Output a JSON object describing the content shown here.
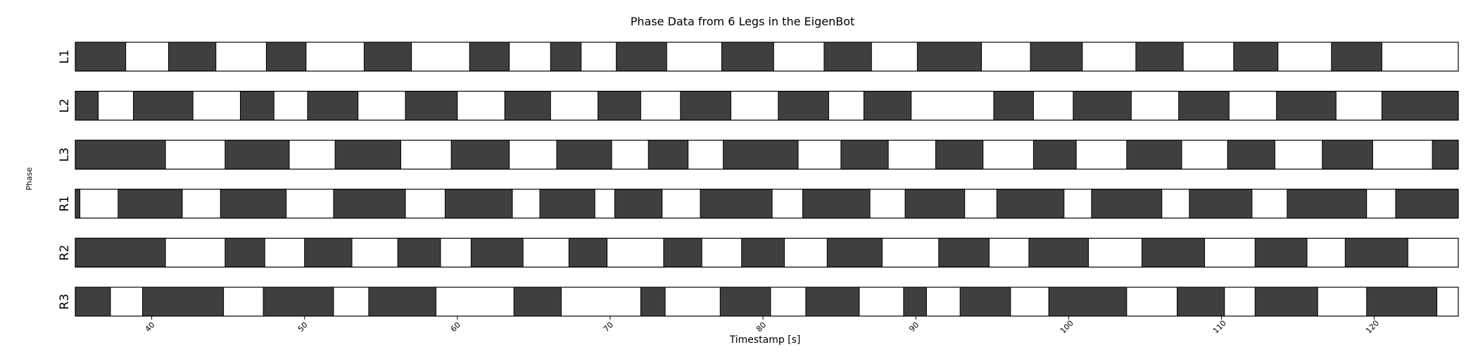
{
  "chart_data": {
    "type": "gantt-phase",
    "title": "Phase Data from 6 Legs in the EigenBot",
    "xlabel": "Timestamp [s]",
    "ylabel": "Phase",
    "xlim": [
      35,
      125.5
    ],
    "xticks": [
      40,
      50,
      60,
      70,
      80,
      90,
      100,
      110,
      120
    ],
    "grid": false,
    "colors": {
      "stance": "#3f3f3f",
      "swing": "#ffffff",
      "edge": "#000000"
    },
    "series": [
      {
        "name": "L1",
        "dark_segments": [
          [
            35.0,
            38.3
          ],
          [
            41.1,
            44.2
          ],
          [
            47.5,
            50.1
          ],
          [
            53.9,
            57.0
          ],
          [
            60.8,
            63.4
          ],
          [
            66.1,
            68.1
          ],
          [
            70.4,
            73.7
          ],
          [
            77.3,
            80.7
          ],
          [
            84.0,
            87.1
          ],
          [
            90.1,
            94.3
          ],
          [
            97.5,
            100.9
          ],
          [
            104.4,
            107.5
          ],
          [
            110.8,
            113.7
          ],
          [
            117.2,
            120.5
          ]
        ]
      },
      {
        "name": "L2",
        "dark_segments": [
          [
            35.0,
            36.5
          ],
          [
            38.8,
            42.7
          ],
          [
            45.8,
            48.0
          ],
          [
            50.2,
            53.5
          ],
          [
            56.6,
            60.0
          ],
          [
            63.1,
            66.1
          ],
          [
            69.2,
            72.0
          ],
          [
            74.6,
            77.9
          ],
          [
            81.0,
            84.3
          ],
          [
            86.6,
            89.7
          ],
          [
            95.1,
            97.7
          ],
          [
            100.3,
            104.1
          ],
          [
            107.2,
            110.5
          ],
          [
            113.6,
            117.5
          ],
          [
            120.5,
            125.5
          ]
        ]
      },
      {
        "name": "L3",
        "dark_segments": [
          [
            35.0,
            40.9
          ],
          [
            44.8,
            49.0
          ],
          [
            52.0,
            56.3
          ],
          [
            59.6,
            63.4
          ],
          [
            66.5,
            70.1
          ],
          [
            72.5,
            75.1
          ],
          [
            77.4,
            82.3
          ],
          [
            85.1,
            88.2
          ],
          [
            91.3,
            94.4
          ],
          [
            97.7,
            100.5
          ],
          [
            103.8,
            107.4
          ],
          [
            110.4,
            113.5
          ],
          [
            116.6,
            119.9
          ],
          [
            123.8,
            125.5
          ]
        ]
      },
      {
        "name": "R1",
        "dark_segments": [
          [
            35.0,
            35.3
          ],
          [
            37.8,
            42.0
          ],
          [
            44.5,
            48.8
          ],
          [
            51.9,
            56.6
          ],
          [
            59.2,
            63.6
          ],
          [
            65.4,
            69.0
          ],
          [
            70.3,
            73.4
          ],
          [
            75.9,
            80.6
          ],
          [
            82.6,
            87.0
          ],
          [
            89.3,
            93.2
          ],
          [
            95.3,
            99.7
          ],
          [
            101.5,
            106.1
          ],
          [
            107.9,
            112.0
          ],
          [
            114.3,
            119.5
          ],
          [
            121.4,
            125.5
          ]
        ]
      },
      {
        "name": "R2",
        "dark_segments": [
          [
            35.0,
            40.9
          ],
          [
            44.8,
            47.4
          ],
          [
            50.0,
            53.1
          ],
          [
            56.1,
            58.9
          ],
          [
            60.9,
            64.3
          ],
          [
            67.3,
            69.8
          ],
          [
            73.5,
            76.0
          ],
          [
            78.6,
            81.4
          ],
          [
            84.2,
            87.8
          ],
          [
            91.5,
            94.8
          ],
          [
            97.4,
            101.3
          ],
          [
            104.8,
            108.9
          ],
          [
            112.2,
            115.6
          ],
          [
            118.1,
            122.2
          ]
        ]
      },
      {
        "name": "R3",
        "dark_segments": [
          [
            35.0,
            37.3
          ],
          [
            39.4,
            44.7
          ],
          [
            47.3,
            51.9
          ],
          [
            54.2,
            58.6
          ],
          [
            63.7,
            66.8
          ],
          [
            72.0,
            73.6
          ],
          [
            77.2,
            80.5
          ],
          [
            82.8,
            86.3
          ],
          [
            89.2,
            90.7
          ],
          [
            92.9,
            96.2
          ],
          [
            98.7,
            103.8
          ],
          [
            107.1,
            110.2
          ],
          [
            112.2,
            116.3
          ],
          [
            119.5,
            124.1
          ]
        ]
      }
    ]
  }
}
